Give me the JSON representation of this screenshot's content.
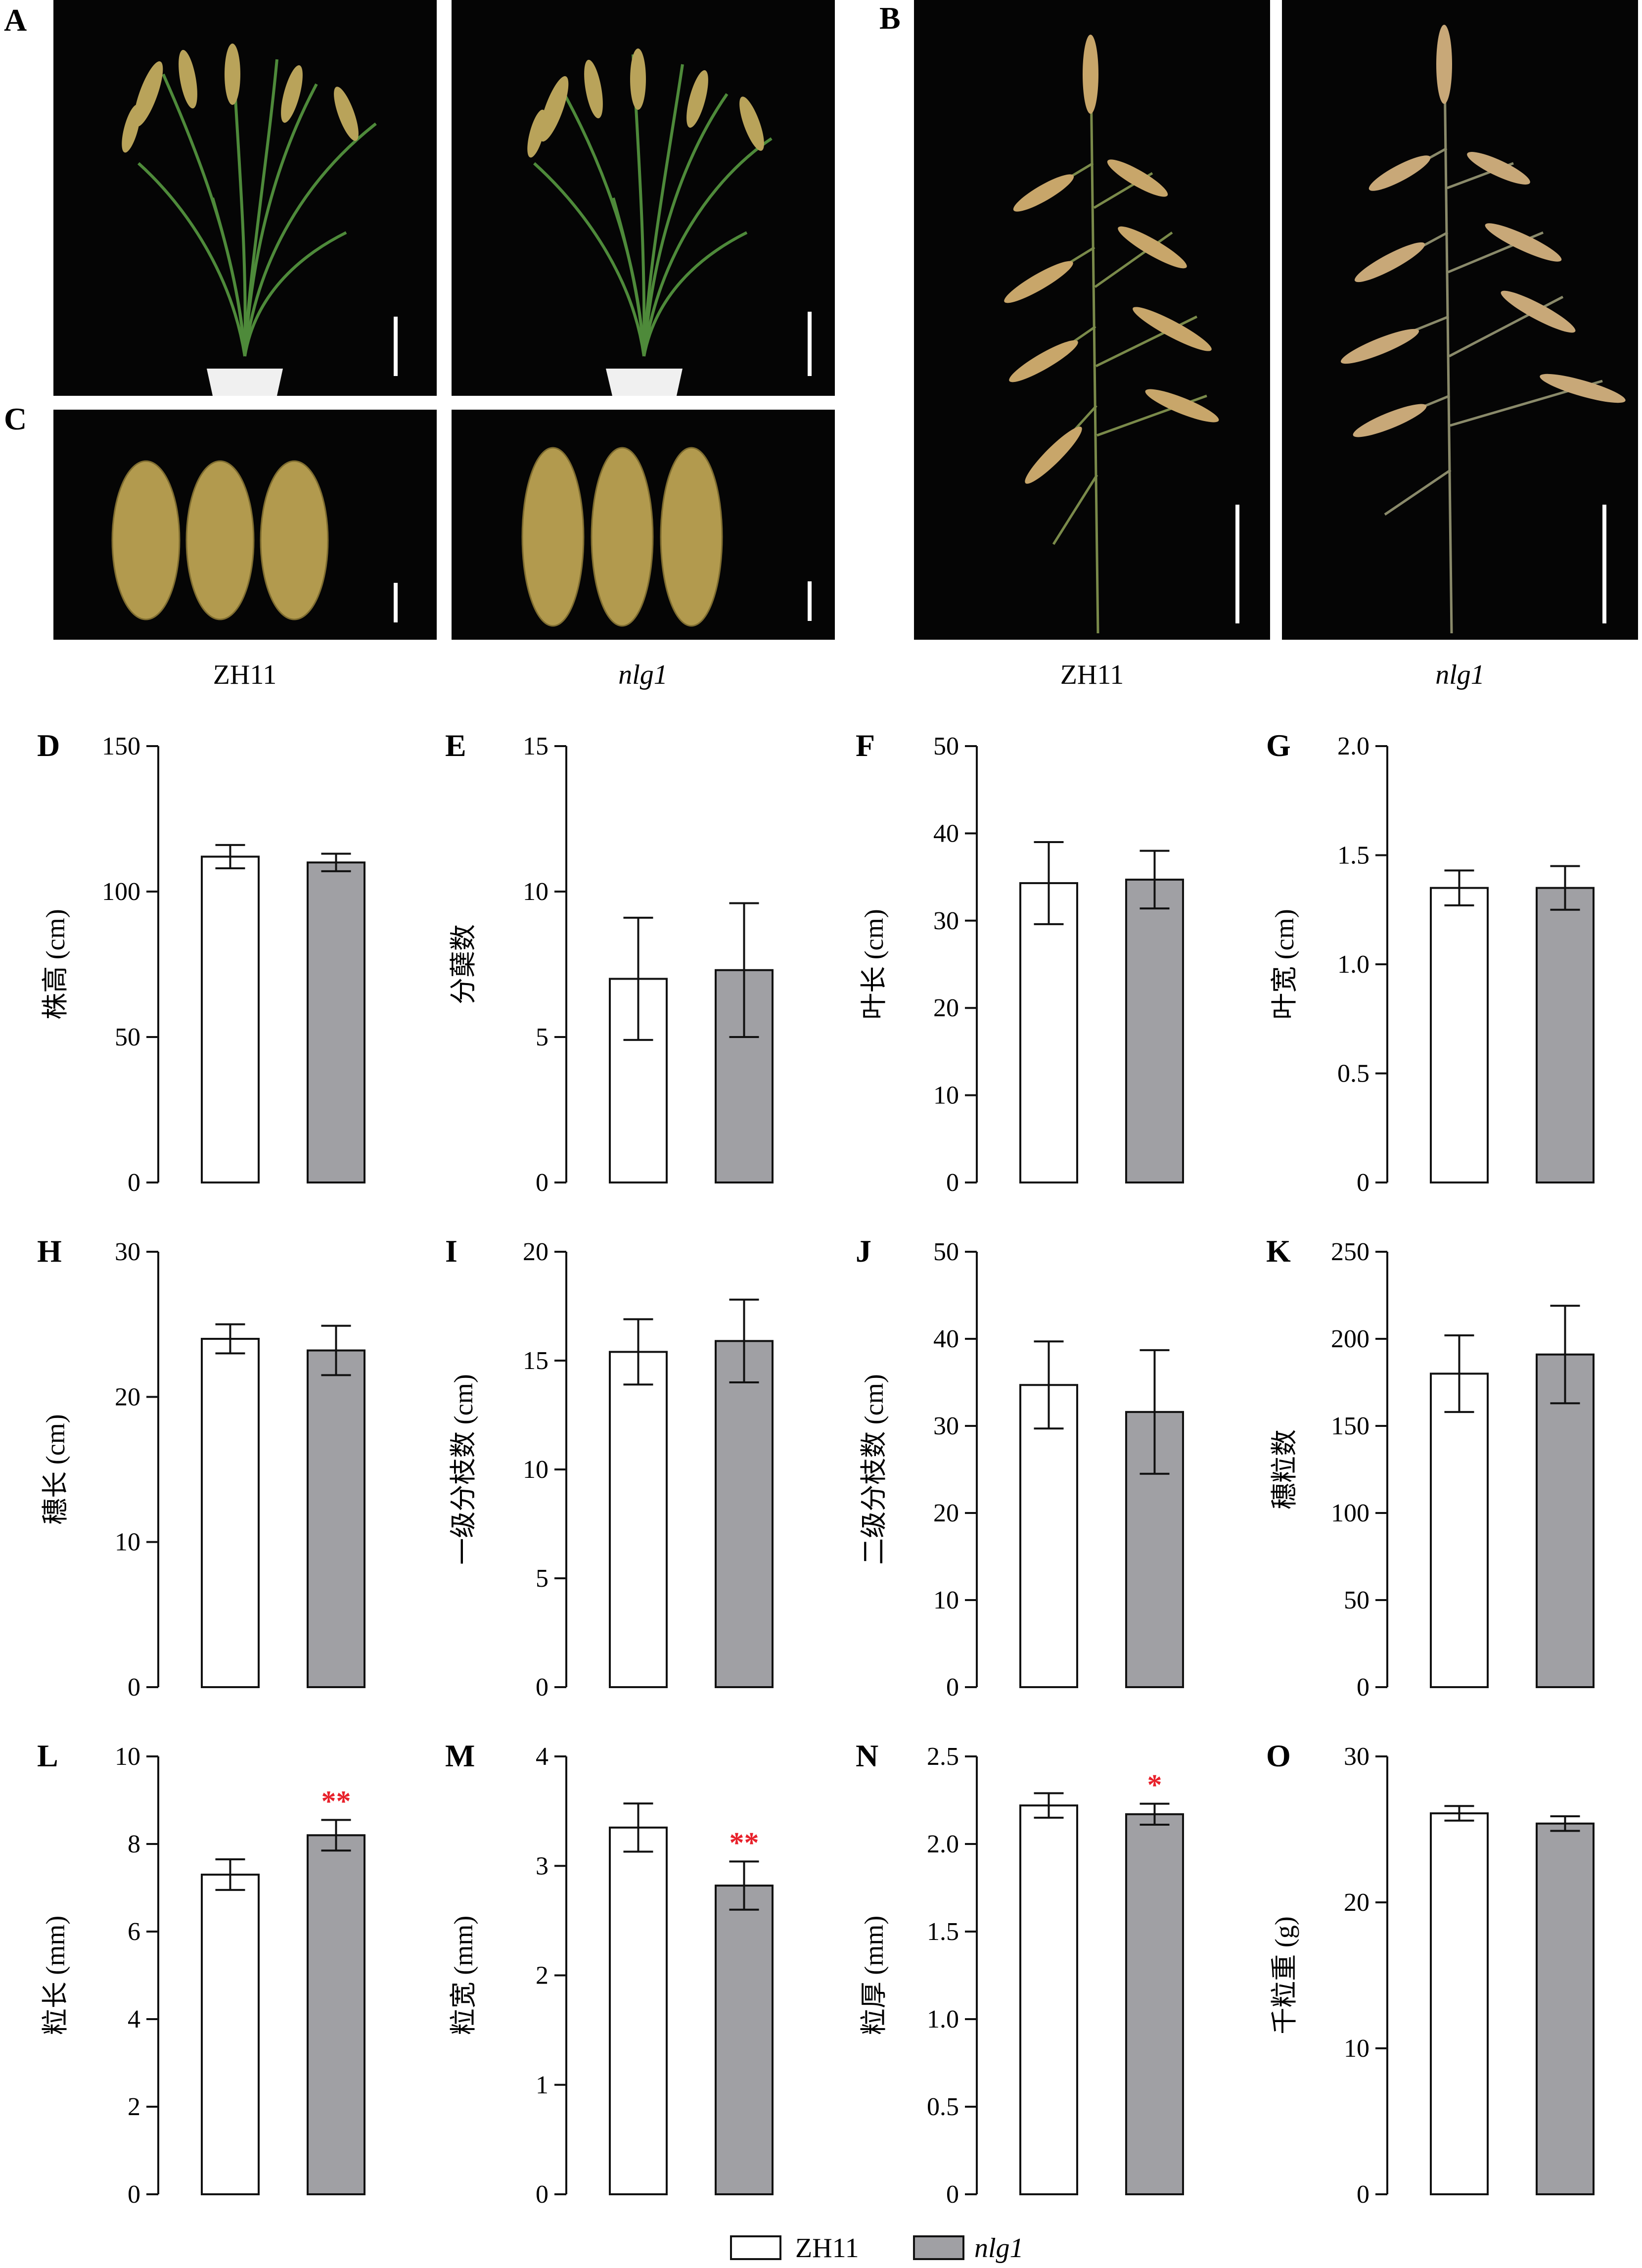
{
  "photos": {
    "panel_A": "A",
    "panel_B": "B",
    "panel_C": "C",
    "caption_left_wt": "ZH11",
    "caption_left_mut": "nlg1",
    "caption_right_wt": "ZH11",
    "caption_right_mut": "nlg1"
  },
  "legend": {
    "wt": "ZH11",
    "mut": "nlg1"
  },
  "colors": {
    "wt_bar": "#ffffff",
    "mut_bar": "#a0a0a4",
    "significance": "#e8202a",
    "photo_bg": "#050505"
  },
  "chart_data": [
    {
      "panel": "D",
      "type": "bar",
      "ylabel": "株高 (cm)",
      "ylim": [
        0,
        150
      ],
      "yticks": [
        0,
        50,
        100,
        150
      ],
      "series": [
        {
          "name": "ZH11",
          "value": 112,
          "error": 4
        },
        {
          "name": "nlg1",
          "value": 110,
          "error": 3
        }
      ],
      "sig": [
        "",
        ""
      ]
    },
    {
      "panel": "E",
      "type": "bar",
      "ylabel": "分蘖数",
      "ylim": [
        0,
        15
      ],
      "yticks": [
        0,
        5,
        10,
        15
      ],
      "series": [
        {
          "name": "ZH11",
          "value": 7.0,
          "error": 2.1
        },
        {
          "name": "nlg1",
          "value": 7.3,
          "error": 2.3
        }
      ],
      "sig": [
        "",
        ""
      ]
    },
    {
      "panel": "F",
      "type": "bar",
      "ylabel": "叶长 (cm)",
      "ylim": [
        0,
        50
      ],
      "yticks": [
        0,
        10,
        20,
        30,
        40,
        50
      ],
      "series": [
        {
          "name": "ZH11",
          "value": 34.3,
          "error": 4.7
        },
        {
          "name": "nlg1",
          "value": 34.7,
          "error": 3.3
        }
      ],
      "sig": [
        "",
        ""
      ]
    },
    {
      "panel": "G",
      "type": "bar",
      "ylabel": "叶宽 (cm)",
      "ylim": [
        0,
        2.0
      ],
      "yticks": [
        "0",
        "0.5",
        "1.0",
        "1.5",
        "2.0"
      ],
      "series": [
        {
          "name": "ZH11",
          "value": 1.35,
          "error": 0.08
        },
        {
          "name": "nlg1",
          "value": 1.35,
          "error": 0.1
        }
      ],
      "sig": [
        "",
        ""
      ]
    },
    {
      "panel": "H",
      "type": "bar",
      "ylabel": "穗长 (cm)",
      "ylim": [
        0,
        30
      ],
      "yticks": [
        0,
        10,
        20,
        30
      ],
      "series": [
        {
          "name": "ZH11",
          "value": 24,
          "error": 1.0
        },
        {
          "name": "nlg1",
          "value": 23.2,
          "error": 1.7
        }
      ],
      "sig": [
        "",
        ""
      ]
    },
    {
      "panel": "I",
      "type": "bar",
      "ylabel": "一级分枝数 (cm)",
      "ylim": [
        0,
        20
      ],
      "yticks": [
        0,
        5,
        10,
        15,
        20
      ],
      "series": [
        {
          "name": "ZH11",
          "value": 15.4,
          "error": 1.5
        },
        {
          "name": "nlg1",
          "value": 15.9,
          "error": 1.9
        }
      ],
      "sig": [
        "",
        ""
      ]
    },
    {
      "panel": "J",
      "type": "bar",
      "ylabel": "二级分枝数 (cm)",
      "ylim": [
        0,
        50
      ],
      "yticks": [
        0,
        10,
        20,
        30,
        40,
        50
      ],
      "series": [
        {
          "name": "ZH11",
          "value": 34.7,
          "error": 5.0
        },
        {
          "name": "nlg1",
          "value": 31.6,
          "error": 7.1
        }
      ],
      "sig": [
        "",
        ""
      ]
    },
    {
      "panel": "K",
      "type": "bar",
      "ylabel": "穗粒数",
      "ylim": [
        0,
        250
      ],
      "yticks": [
        0,
        50,
        100,
        150,
        200,
        250
      ],
      "series": [
        {
          "name": "ZH11",
          "value": 180,
          "error": 22
        },
        {
          "name": "nlg1",
          "value": 191,
          "error": 28
        }
      ],
      "sig": [
        "",
        ""
      ]
    },
    {
      "panel": "L",
      "type": "bar",
      "ylabel": "粒长 (mm)",
      "ylim": [
        0,
        10
      ],
      "yticks": [
        0,
        2,
        4,
        6,
        8,
        10
      ],
      "series": [
        {
          "name": "ZH11",
          "value": 7.3,
          "error": 0.35
        },
        {
          "name": "nlg1",
          "value": 8.2,
          "error": 0.35
        }
      ],
      "sig": [
        "",
        "**"
      ]
    },
    {
      "panel": "M",
      "type": "bar",
      "ylabel": "粒宽 (mm)",
      "ylim": [
        0,
        4
      ],
      "yticks": [
        0,
        1,
        2,
        3,
        4
      ],
      "series": [
        {
          "name": "ZH11",
          "value": 3.35,
          "error": 0.22
        },
        {
          "name": "nlg1",
          "value": 2.82,
          "error": 0.22
        }
      ],
      "sig": [
        "",
        "**"
      ]
    },
    {
      "panel": "N",
      "type": "bar",
      "ylabel": "粒厚 (mm)",
      "ylim": [
        0,
        2.5
      ],
      "yticks": [
        "0",
        "0.5",
        "1.0",
        "1.5",
        "2.0",
        "2.5"
      ],
      "series": [
        {
          "name": "ZH11",
          "value": 2.22,
          "error": 0.07
        },
        {
          "name": "nlg1",
          "value": 2.17,
          "error": 0.06
        }
      ],
      "sig": [
        "",
        "*"
      ]
    },
    {
      "panel": "O",
      "type": "bar",
      "ylabel": "千粒重 (g)",
      "ylim": [
        0,
        30
      ],
      "yticks": [
        0,
        10,
        20,
        30
      ],
      "series": [
        {
          "name": "ZH11",
          "value": 26.1,
          "error": 0.5
        },
        {
          "name": "nlg1",
          "value": 25.4,
          "error": 0.5
        }
      ],
      "sig": [
        "",
        ""
      ]
    }
  ]
}
